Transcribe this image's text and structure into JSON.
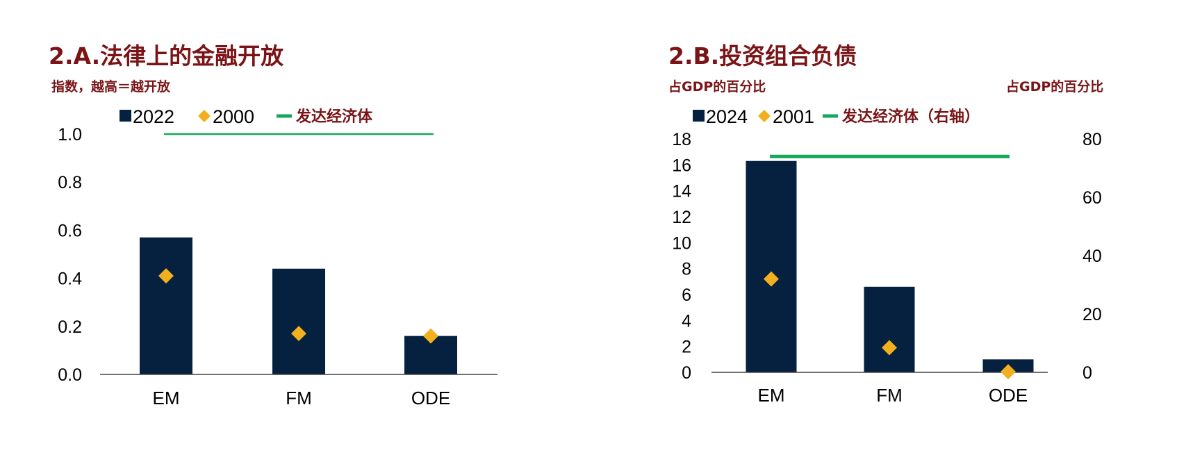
{
  "panels": {
    "a": {
      "title": "2.A.法律上的金融开放",
      "subtitle": "指数，越高＝越开放"
    },
    "b": {
      "title": "2.B.投资组合负债",
      "left_unit": "占GDP的百分比",
      "right_unit": "占GDP的百分比"
    }
  },
  "colors": {
    "bar": "#06213f",
    "marker": "#f2b01e",
    "line": "#15a85c",
    "title": "#7a1416"
  },
  "chart_data": [
    {
      "type": "bar",
      "title": "2.A.法律上的金融开放",
      "subtitle": "指数，越高＝越开放",
      "categories": [
        "EM",
        "FM",
        "ODE"
      ],
      "series": [
        {
          "name": "2022",
          "kind": "bar",
          "values": [
            0.57,
            0.44,
            0.16
          ]
        },
        {
          "name": "2000",
          "kind": "marker",
          "values": [
            0.41,
            0.17,
            0.16
          ]
        },
        {
          "name": "发达经济体",
          "kind": "line",
          "value": 1.0
        }
      ],
      "ylim": [
        0,
        1.0
      ],
      "yticks": [
        "0.0",
        "0.2",
        "0.4",
        "0.6",
        "0.8",
        "1.0"
      ],
      "legend": "top"
    },
    {
      "type": "bar",
      "title": "2.B.投资组合负债",
      "ylabel_left": "占GDP的百分比",
      "ylabel_right": "占GDP的百分比",
      "categories": [
        "EM",
        "FM",
        "ODE"
      ],
      "series": [
        {
          "name": "2024",
          "kind": "bar",
          "axis": "left",
          "values": [
            16.3,
            6.6,
            1.0
          ]
        },
        {
          "name": "2001",
          "kind": "marker",
          "axis": "left",
          "values": [
            7.2,
            1.9,
            0.05
          ]
        },
        {
          "name": "发达经济体（右轴）",
          "kind": "line",
          "axis": "right",
          "value": 74
        }
      ],
      "ylim_left": [
        0,
        18
      ],
      "ylim_right": [
        0,
        80
      ],
      "yticks_left": [
        "0",
        "2",
        "4",
        "6",
        "8",
        "10",
        "12",
        "14",
        "16",
        "18"
      ],
      "yticks_right": [
        "0",
        "20",
        "40",
        "60",
        "80"
      ],
      "legend": "top"
    }
  ]
}
